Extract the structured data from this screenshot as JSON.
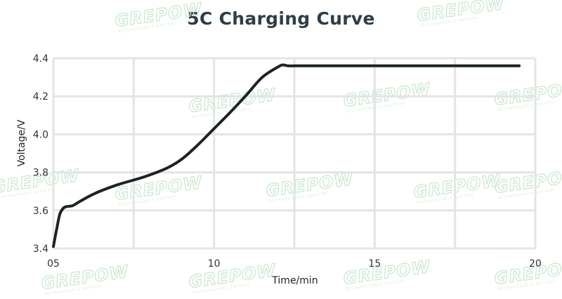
{
  "watermark": {
    "brand": "GREPOW",
    "tagline": "RECHARGEABLE BATTERY"
  },
  "chart_data": {
    "type": "line",
    "title": "5C Charging Curve",
    "xlabel": "Time/min",
    "ylabel": "Voltage/V",
    "xlim": [
      5,
      20
    ],
    "ylim": [
      3.4,
      4.4
    ],
    "x_ticks": [
      5,
      10,
      15,
      20
    ],
    "x_tick_labels": [
      "05",
      "10",
      "15",
      "20"
    ],
    "y_ticks": [
      3.4,
      3.6,
      3.8,
      4.0,
      4.2,
      4.4
    ],
    "y_tick_labels": [
      "3.4",
      "3.6",
      "3.8",
      "4.0",
      "4.2",
      "4.4"
    ],
    "grid": true,
    "line_color": "#1c2326",
    "grid_color": "#e4e4e4",
    "series": [
      {
        "x": [
          5.0,
          5.1,
          5.2,
          5.3,
          5.4,
          5.6,
          5.8,
          6.3,
          7.0,
          7.8,
          8.5,
          9.0,
          9.5,
          10.0,
          10.5,
          11.0,
          11.5,
          12.0,
          12.15,
          12.3,
          12.6,
          13.5,
          15.0,
          17.0,
          19.5
        ],
        "y": [
          3.41,
          3.5,
          3.58,
          3.61,
          3.62,
          3.625,
          3.645,
          3.69,
          3.735,
          3.775,
          3.82,
          3.87,
          3.945,
          4.03,
          4.115,
          4.205,
          4.3,
          4.355,
          4.365,
          4.36,
          4.36,
          4.36,
          4.36,
          4.36,
          4.36
        ]
      }
    ]
  }
}
